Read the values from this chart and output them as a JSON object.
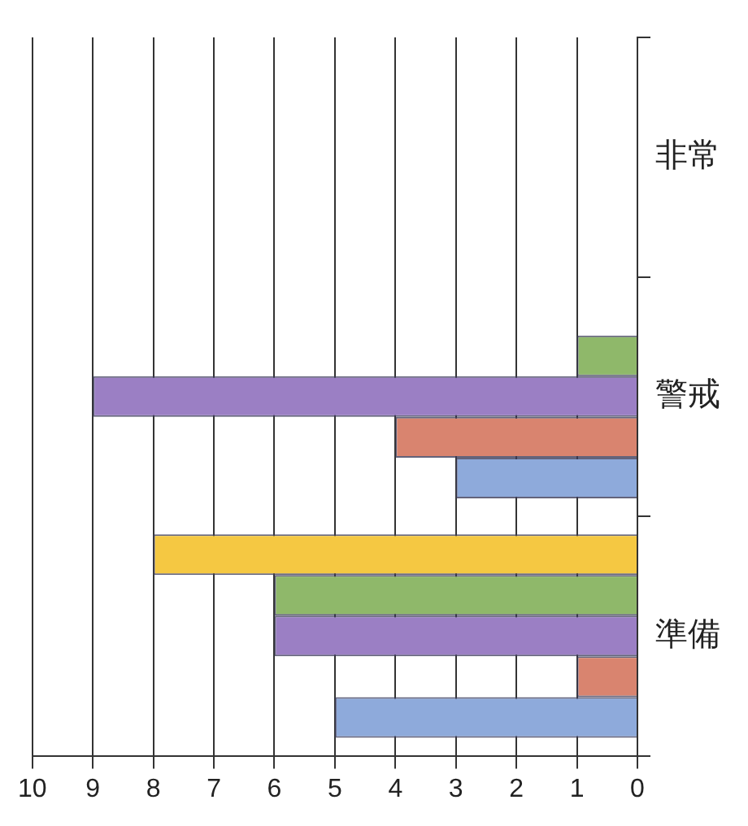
{
  "chart_data": {
    "type": "bar",
    "orientation": "horizontal",
    "categories": [
      "非常",
      "警戒",
      "準備"
    ],
    "series": [
      {
        "color": "#8eaadb",
        "values": [
          0,
          3,
          5
        ]
      },
      {
        "color": "#d9846f",
        "values": [
          0,
          4,
          1
        ]
      },
      {
        "color": "#9b7fc4",
        "values": [
          0,
          9,
          6
        ]
      },
      {
        "color": "#8fb86a",
        "values": [
          0,
          1,
          6
        ]
      },
      {
        "color": "#f5c842",
        "values": [
          0,
          0,
          8
        ]
      }
    ],
    "xlim": [
      10,
      0
    ],
    "xticks": [
      10,
      9,
      8,
      7,
      6,
      5,
      4,
      3,
      2,
      1,
      0
    ],
    "grid": "x",
    "legend": false
  }
}
